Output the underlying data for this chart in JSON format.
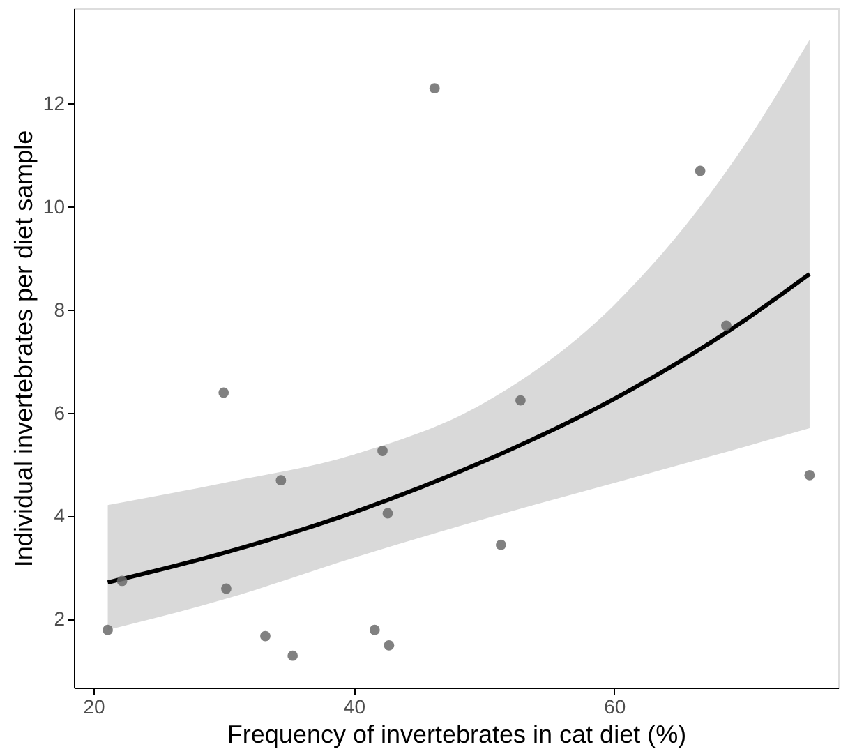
{
  "chart_data": {
    "type": "scatter",
    "xlabel": "Frequency of invertebrates in cat diet (%)",
    "ylabel": "Individual invertebrates per diet sample",
    "xlim": [
      18.5,
      77.2
    ],
    "ylim": [
      0.68,
      13.85
    ],
    "xticks": [
      20,
      40,
      60
    ],
    "yticks": [
      2,
      4,
      6,
      8,
      10,
      12
    ],
    "grid": false,
    "series": [
      {
        "color": "#6b6b6b",
        "marker": "circle",
        "x": [
          21.1,
          22.2,
          30.0,
          30.2,
          33.2,
          34.4,
          35.3,
          41.6,
          42.2,
          42.6,
          42.7,
          46.2,
          51.3,
          52.8,
          66.6,
          68.6,
          75.0
        ],
        "values": [
          1.8,
          2.75,
          6.4,
          2.6,
          1.68,
          4.7,
          1.3,
          1.8,
          5.27,
          4.06,
          1.5,
          12.3,
          3.45,
          6.25,
          10.7,
          7.7,
          4.8
        ]
      },
      {
        "type": "line",
        "color": "#000000",
        "line_style": "solid",
        "x": [
          21.1,
          30,
          40,
          50,
          60,
          70,
          75
        ],
        "values": [
          2.72,
          3.29,
          4.08,
          5.07,
          6.28,
          7.8,
          8.7
        ],
        "lower": [
          1.8,
          2.39,
          3.2,
          3.95,
          4.65,
          5.35,
          5.71
        ],
        "upper": [
          4.22,
          4.65,
          5.2,
          6.2,
          8.1,
          11.2,
          13.24
        ]
      }
    ]
  }
}
